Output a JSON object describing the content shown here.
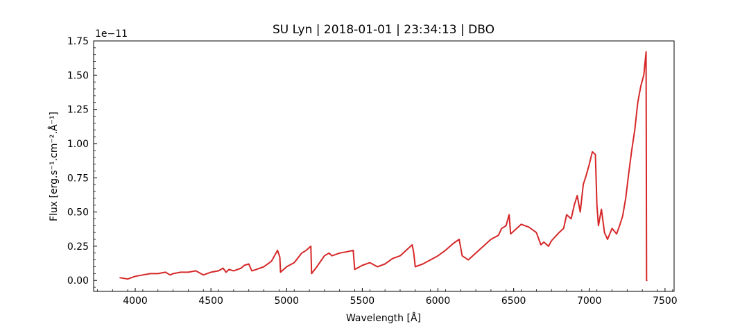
{
  "chart_data": {
    "type": "line",
    "title": "SU Lyn | 2018-01-01 | 23:34:13 | DBO",
    "xlabel": "Wavelength [Å]",
    "ylabel": "Flux [erg.s⁻¹.cm⁻².Å⁻¹]",
    "y_offset_label": "1e−11",
    "y_scale_factor": 1e-11,
    "xlim": [
      3725,
      7560
    ],
    "ylim": [
      -0.08,
      1.75
    ],
    "x_ticks": [
      4000,
      4500,
      5000,
      5500,
      6000,
      6500,
      7000,
      7500
    ],
    "y_ticks": [
      0.0,
      0.25,
      0.5,
      0.75,
      1.0,
      1.25,
      1.5,
      1.75
    ],
    "y_tick_labels": [
      "0.00",
      "0.25",
      "0.50",
      "0.75",
      "1.00",
      "1.25",
      "1.50",
      "1.75"
    ],
    "grid": false,
    "legend": "none",
    "series": [
      {
        "color": "#d62728",
        "x": [
          3900,
          3950,
          4000,
          4050,
          4100,
          4150,
          4200,
          4230,
          4250,
          4300,
          4350,
          4400,
          4450,
          4500,
          4550,
          4580,
          4600,
          4620,
          4650,
          4700,
          4720,
          4750,
          4770,
          4800,
          4850,
          4900,
          4940,
          4955,
          4960,
          5000,
          5050,
          5100,
          5130,
          5160,
          5165,
          5200,
          5250,
          5280,
          5300,
          5350,
          5400,
          5440,
          5450,
          5500,
          5550,
          5600,
          5650,
          5700,
          5750,
          5800,
          5830,
          5840,
          5850,
          5900,
          5950,
          6000,
          6050,
          6100,
          6140,
          6160,
          6200,
          6250,
          6300,
          6350,
          6400,
          6420,
          6450,
          6470,
          6480,
          6500,
          6550,
          6600,
          6650,
          6680,
          6700,
          6730,
          6750,
          6800,
          6830,
          6850,
          6880,
          6900,
          6920,
          6940,
          6960,
          6980,
          7000,
          7020,
          7040,
          7050,
          7060,
          7080,
          7100,
          7120,
          7150,
          7180,
          7200,
          7220,
          7240,
          7260,
          7280,
          7300,
          7320,
          7340,
          7360,
          7375,
          7378,
          7380
        ],
        "values": [
          0.02,
          0.01,
          0.03,
          0.04,
          0.05,
          0.05,
          0.06,
          0.04,
          0.05,
          0.06,
          0.06,
          0.07,
          0.04,
          0.06,
          0.07,
          0.09,
          0.06,
          0.08,
          0.07,
          0.09,
          0.11,
          0.12,
          0.07,
          0.08,
          0.1,
          0.14,
          0.22,
          0.17,
          0.06,
          0.1,
          0.13,
          0.2,
          0.22,
          0.25,
          0.05,
          0.1,
          0.18,
          0.2,
          0.18,
          0.2,
          0.21,
          0.22,
          0.08,
          0.11,
          0.13,
          0.1,
          0.12,
          0.16,
          0.18,
          0.23,
          0.26,
          0.2,
          0.1,
          0.12,
          0.15,
          0.18,
          0.22,
          0.27,
          0.3,
          0.18,
          0.15,
          0.2,
          0.25,
          0.3,
          0.33,
          0.38,
          0.4,
          0.48,
          0.34,
          0.36,
          0.41,
          0.39,
          0.35,
          0.26,
          0.28,
          0.25,
          0.29,
          0.35,
          0.38,
          0.48,
          0.45,
          0.55,
          0.62,
          0.5,
          0.7,
          0.77,
          0.85,
          0.94,
          0.92,
          0.55,
          0.4,
          0.52,
          0.35,
          0.3,
          0.38,
          0.34,
          0.4,
          0.47,
          0.6,
          0.78,
          0.95,
          1.1,
          1.3,
          1.42,
          1.5,
          1.67,
          0.0,
          0.0
        ]
      }
    ]
  }
}
